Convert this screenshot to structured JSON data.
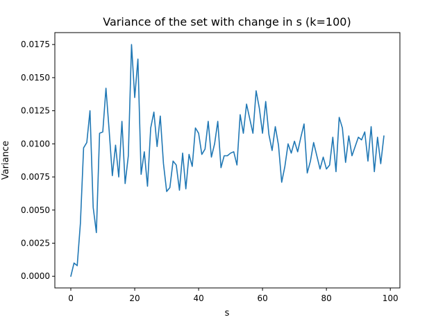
{
  "chart_data": {
    "type": "line",
    "title": "Variance of the set with change in s (k=100)",
    "xlabel": "s",
    "ylabel": "Variance",
    "xlim": [
      -5,
      103
    ],
    "ylim": [
      -0.00088,
      0.0184
    ],
    "xticks": [
      0,
      20,
      40,
      60,
      80,
      100
    ],
    "xtick_labels": [
      "0",
      "20",
      "40",
      "60",
      "80",
      "100"
    ],
    "yticks": [
      0.0,
      0.0025,
      0.005,
      0.0075,
      0.01,
      0.0125,
      0.015,
      0.0175
    ],
    "ytick_labels": [
      "0.0000",
      "0.0025",
      "0.0050",
      "0.0075",
      "0.0100",
      "0.0125",
      "0.0150",
      "0.0175"
    ],
    "grid": false,
    "legend": "none",
    "series": [
      {
        "color": "#1f77b4",
        "x": [
          0,
          1,
          2,
          3,
          4,
          5,
          6,
          7,
          8,
          9,
          10,
          11,
          12,
          13,
          14,
          15,
          16,
          17,
          18,
          19,
          20,
          21,
          22,
          23,
          24,
          25,
          26,
          27,
          28,
          29,
          30,
          31,
          32,
          33,
          34,
          35,
          36,
          37,
          38,
          39,
          40,
          41,
          42,
          43,
          44,
          45,
          46,
          47,
          48,
          49,
          50,
          51,
          52,
          53,
          54,
          55,
          56,
          57,
          58,
          59,
          60,
          61,
          62,
          63,
          64,
          65,
          66,
          67,
          68,
          69,
          70,
          71,
          72,
          73,
          74,
          75,
          76,
          77,
          78,
          79,
          80,
          81,
          82,
          83,
          84,
          85,
          86,
          87,
          88,
          89,
          90,
          91,
          92,
          93,
          94,
          95,
          96,
          97,
          98
        ],
        "values": [
          0.0,
          0.001,
          0.0008,
          0.004,
          0.0097,
          0.0101,
          0.0125,
          0.0052,
          0.0033,
          0.0108,
          0.0109,
          0.0142,
          0.011,
          0.0076,
          0.0099,
          0.0075,
          0.0117,
          0.007,
          0.0091,
          0.0175,
          0.0135,
          0.0164,
          0.0077,
          0.0094,
          0.0068,
          0.0112,
          0.0124,
          0.0098,
          0.0121,
          0.0085,
          0.0064,
          0.0067,
          0.0087,
          0.0084,
          0.0065,
          0.0093,
          0.0066,
          0.0092,
          0.0083,
          0.0112,
          0.0108,
          0.0092,
          0.0096,
          0.0117,
          0.009,
          0.01,
          0.0117,
          0.0082,
          0.0091,
          0.0091,
          0.0093,
          0.0094,
          0.0084,
          0.0122,
          0.0108,
          0.013,
          0.0119,
          0.0108,
          0.014,
          0.0127,
          0.0108,
          0.0132,
          0.0107,
          0.0095,
          0.0113,
          0.0099,
          0.0071,
          0.0083,
          0.01,
          0.0093,
          0.0102,
          0.0094,
          0.0105,
          0.0115,
          0.0078,
          0.0087,
          0.0101,
          0.0091,
          0.0081,
          0.009,
          0.0081,
          0.0084,
          0.0105,
          0.0079,
          0.012,
          0.0112,
          0.0086,
          0.0106,
          0.0091,
          0.0098,
          0.0105,
          0.0103,
          0.0109,
          0.0087,
          0.0113,
          0.0079,
          0.0105,
          0.0085,
          0.0106
        ]
      }
    ]
  }
}
